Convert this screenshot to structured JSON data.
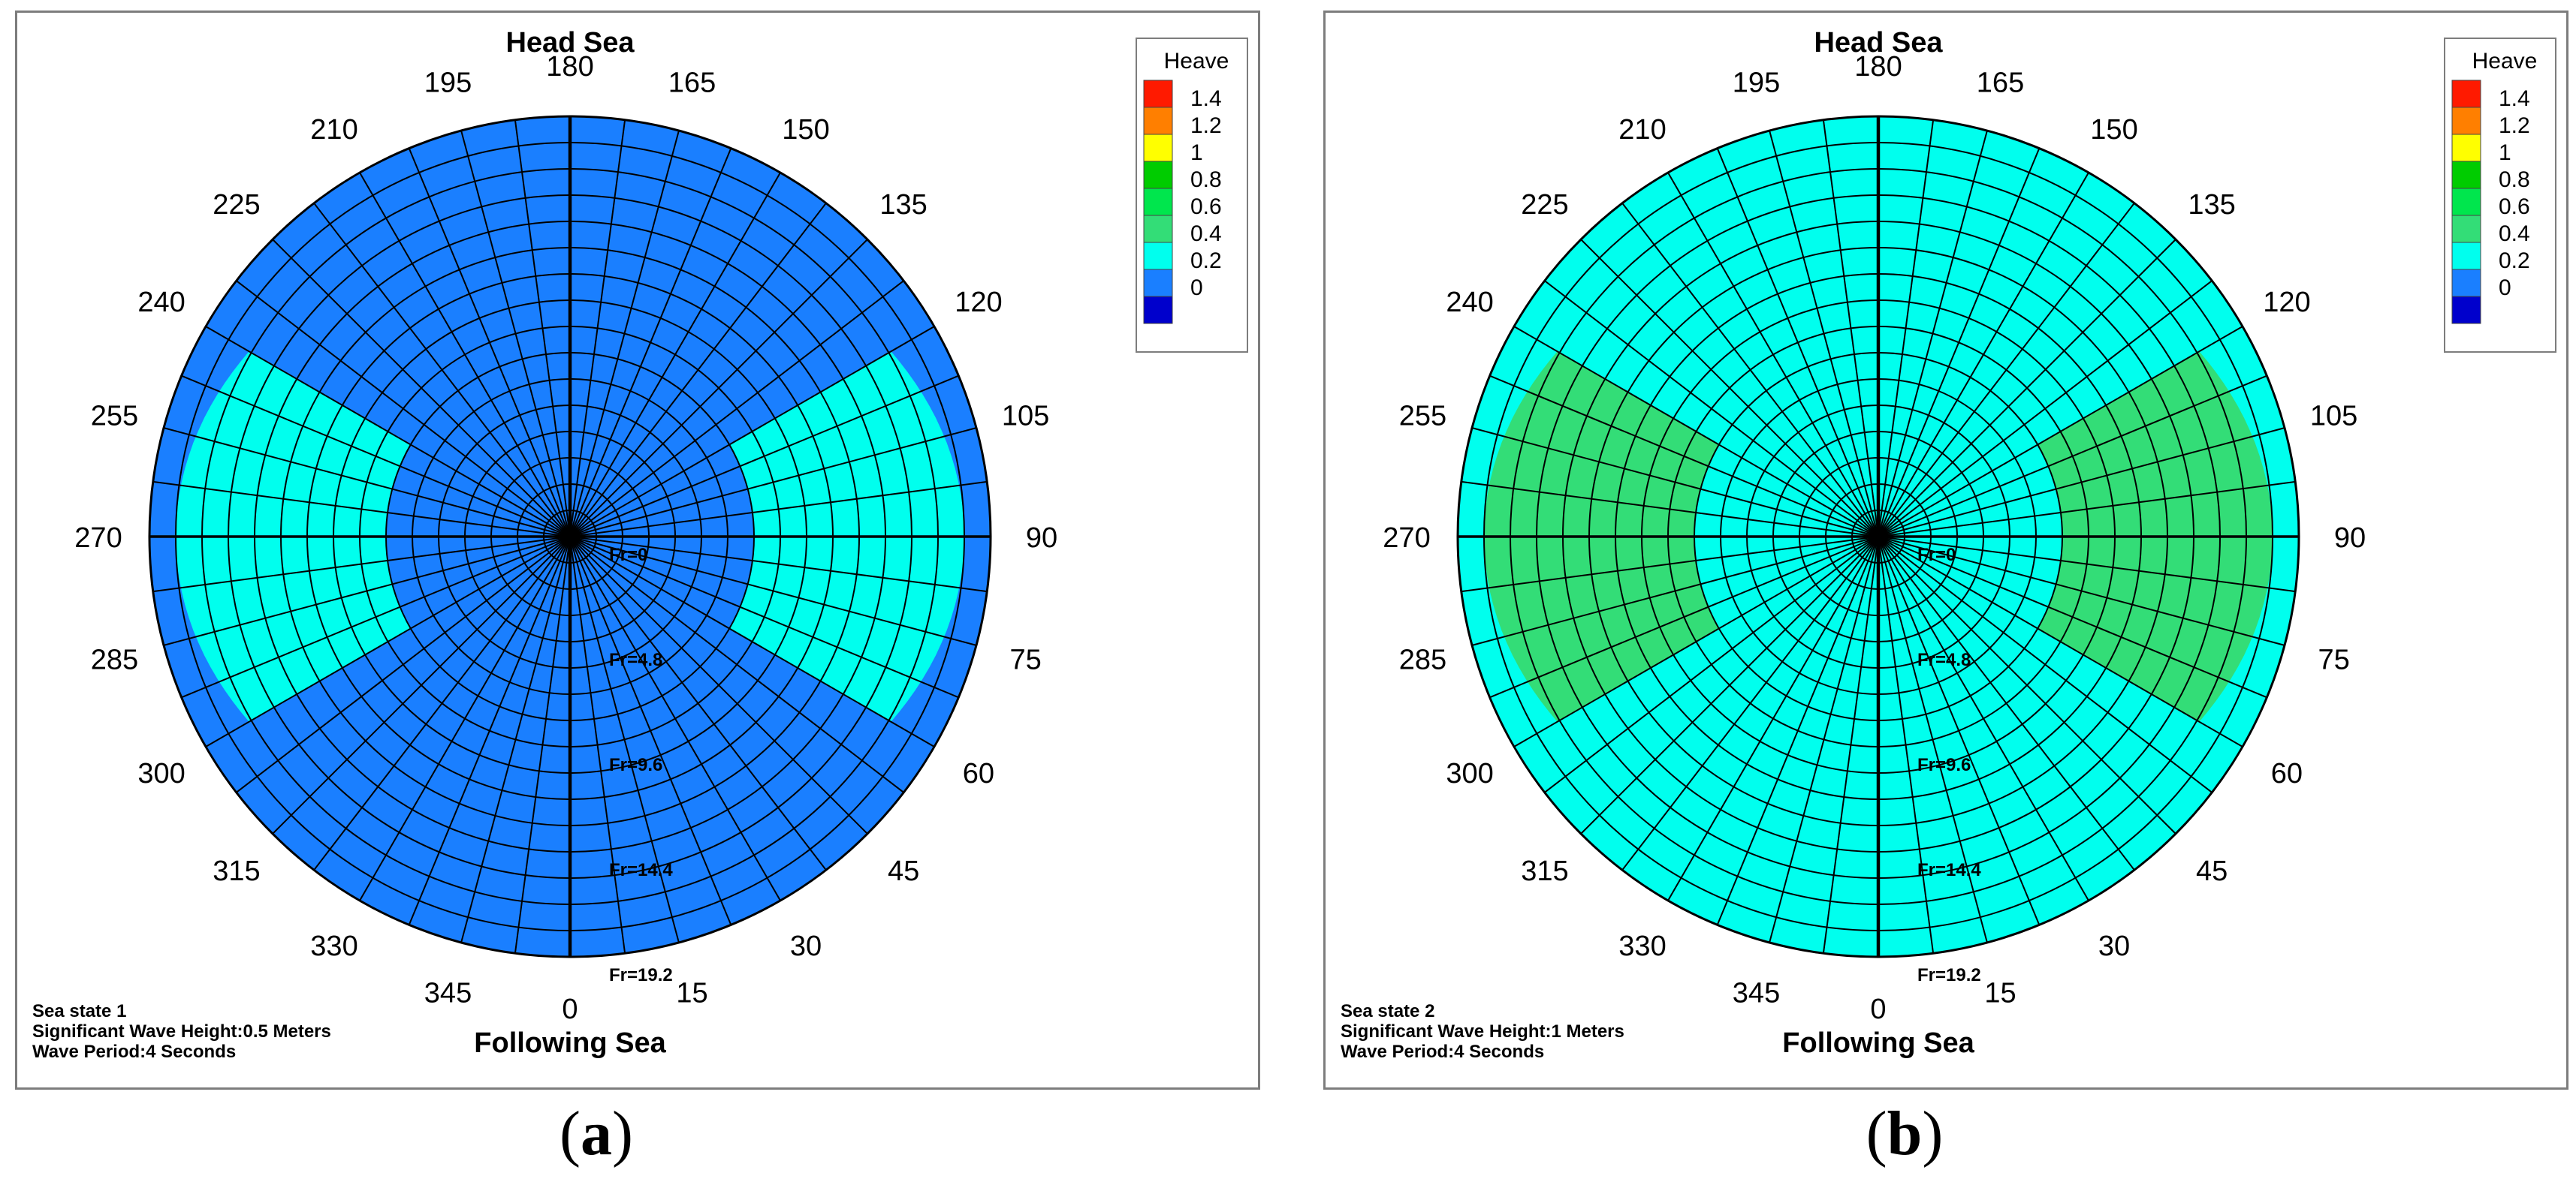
{
  "colors": {
    "background": "#ffffff",
    "panel_border": "#7d7d7d",
    "grid": "#000000",
    "text": "#000000"
  },
  "legend": {
    "title": "Heave",
    "bins": [
      {
        "label": "1.4",
        "color": "#ff1a00"
      },
      {
        "label": "1.2",
        "color": "#ff7f00"
      },
      {
        "label": "1",
        "color": "#ffff00"
      },
      {
        "label": "0.8",
        "color": "#00cc00"
      },
      {
        "label": "0.6",
        "color": "#00e64d"
      },
      {
        "label": "0.4",
        "color": "#33dd77"
      },
      {
        "label": "0.2",
        "color": "#00ffee"
      },
      {
        "label": "0",
        "color": "#1a7fff"
      },
      {
        "label": "",
        "color": "#0000cc"
      }
    ]
  },
  "panels": [
    {
      "id": "a",
      "caption_open": "(",
      "caption_letter": "a",
      "caption_close": ")",
      "top_label": "Head Sea",
      "bottom_label": "Following Sea",
      "info": [
        "Sea state 1",
        "Significant Wave Height:0.5 Meters",
        "Wave Period:4 Seconds"
      ],
      "colors": {
        "base": "#1a7fff",
        "region": "#00ffee"
      }
    },
    {
      "id": "b",
      "caption_open": "(",
      "caption_letter": "b",
      "caption_close": ")",
      "top_label": "Head Sea",
      "bottom_label": "Following Sea",
      "info": [
        "Sea state 2",
        "Significant Wave Height:1 Meters",
        "Wave Period:4 Seconds"
      ],
      "colors": {
        "base": "#00ffee",
        "region": "#33dd77"
      }
    }
  ],
  "chart_data": [
    {
      "type": "polar-contour",
      "title": "Head Sea",
      "variable": "Heave",
      "angular_axis": {
        "labels": [
          "0",
          "15",
          "30",
          "45",
          "60",
          "75",
          "90",
          "105",
          "120",
          "135",
          "150",
          "165",
          "180",
          "195",
          "210",
          "225",
          "240",
          "255",
          "270",
          "285",
          "300",
          "315",
          "330",
          "345"
        ],
        "top": "Head Sea",
        "bottom": "Following Sea"
      },
      "radial_axis": {
        "labels": [
          "Fr=0",
          "Fr=4.8",
          "Fr=9.6",
          "Fr=14.4",
          "Fr=19.2"
        ],
        "range": [
          0,
          19.2
        ]
      },
      "contours": [
        {
          "level": "0.2–0.4",
          "fill": "#1a7fff",
          "region": "entire polar area"
        },
        {
          "level": "0.4–0.6",
          "fill": "#00ffee",
          "regions": [
            {
              "heading_range": [
                60,
                120
              ],
              "fr_range": [
                8.4,
                18
              ]
            },
            {
              "heading_range": [
                240,
                300
              ],
              "fr_range": [
                8.4,
                18
              ]
            }
          ]
        }
      ],
      "annotations": [
        "Sea state 1",
        "Significant Wave Height:0.5 Meters",
        "Wave Period:4 Seconds"
      ]
    },
    {
      "type": "polar-contour",
      "title": "Head Sea",
      "variable": "Heave",
      "angular_axis": {
        "labels": [
          "0",
          "15",
          "30",
          "45",
          "60",
          "75",
          "90",
          "105",
          "120",
          "135",
          "150",
          "165",
          "180",
          "195",
          "210",
          "225",
          "240",
          "255",
          "270",
          "285",
          "300",
          "315",
          "330",
          "345"
        ],
        "top": "Head Sea",
        "bottom": "Following Sea"
      },
      "radial_axis": {
        "labels": [
          "Fr=0",
          "Fr=4.8",
          "Fr=9.6",
          "Fr=14.4",
          "Fr=19.2"
        ],
        "range": [
          0,
          19.2
        ]
      },
      "contours": [
        {
          "level": "0.4–0.6",
          "fill": "#00ffee",
          "region": "entire polar area"
        },
        {
          "level": "0.6–0.8",
          "fill": "#33dd77",
          "regions": [
            {
              "heading_range": [
                60,
                120
              ],
              "fr_range": [
                8.4,
                18
              ]
            },
            {
              "heading_range": [
                240,
                300
              ],
              "fr_range": [
                8.4,
                18
              ]
            }
          ]
        }
      ],
      "annotations": [
        "Sea state 2",
        "Significant Wave Height:1 Meters",
        "Wave Period:4 Seconds"
      ]
    }
  ]
}
